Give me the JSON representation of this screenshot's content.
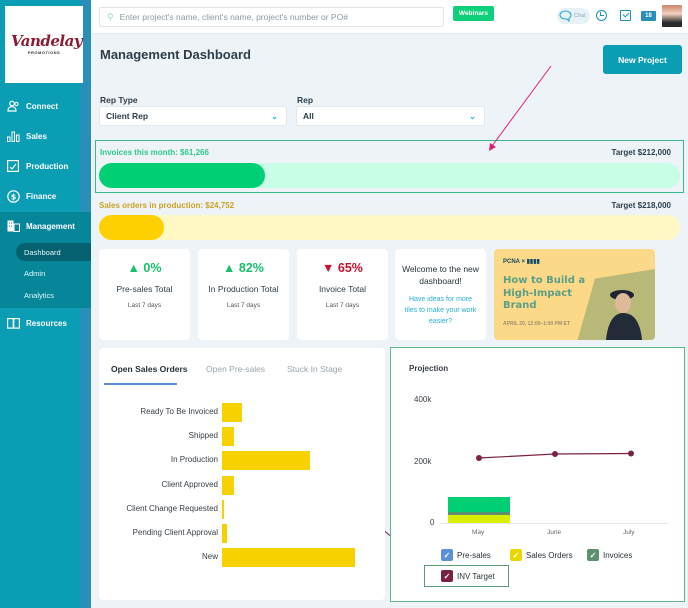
{
  "brand": {
    "logo_text": "Vandelay",
    "logo_sub": "PROMOTIONS"
  },
  "sidebar": {
    "items": [
      {
        "label": "Connect",
        "icon": "people-icon"
      },
      {
        "label": "Sales",
        "icon": "bar-chart-icon"
      },
      {
        "label": "Production",
        "icon": "clipboard-icon"
      },
      {
        "label": "Finance",
        "icon": "dollar-circle-icon"
      },
      {
        "label": "Management",
        "icon": "building-icon"
      },
      {
        "label": "Resources",
        "icon": "book-icon"
      }
    ],
    "management_sub": [
      {
        "label": "Dashboard",
        "active": true
      },
      {
        "label": "Admin"
      },
      {
        "label": "Analytics"
      }
    ]
  },
  "topbar": {
    "search_placeholder": "Enter project's name, client's name, project's number or PO#",
    "webinars_label": "Webinars",
    "chat_label": "Chat",
    "notification_count": "18"
  },
  "header": {
    "title": "Management Dashboard",
    "new_project_label": "New Project"
  },
  "filters": {
    "rep_type_label": "Rep Type",
    "rep_type_value": "Client Rep",
    "rep_label": "Rep",
    "rep_value": "All"
  },
  "progress": {
    "invoices": {
      "label": "Invoices this month: $61,266",
      "target": "Target $212,000",
      "value": 61266,
      "target_value": 212000,
      "color": "#00cf73",
      "track": "#c8fde6"
    },
    "sales_orders": {
      "label": "Sales orders in production: $24,752",
      "target": "Target $218,000",
      "value": 24752,
      "target_value": 218000,
      "color": "#ffd000",
      "track": "#fff7c4"
    }
  },
  "stat_cards": [
    {
      "arrow": "▲",
      "pct": "0%",
      "title": "Pre-sales Total",
      "period": "Last 7 days",
      "color": "#18c06b"
    },
    {
      "arrow": "▲",
      "pct": "82%",
      "title": "In Production Total",
      "period": "Last 7 days",
      "color": "#18c06b"
    },
    {
      "arrow": "▼",
      "pct": "65%",
      "title": "Invoice Total",
      "period": "Last 7 days",
      "color": "#c8102e"
    }
  ],
  "welcome": {
    "heading": "Welcome to the new dashboard!",
    "link": "Have ideas for more tiles to make your work easier?"
  },
  "ad": {
    "logos": "PCNA × ▮▮▮▮",
    "title": "How to Build a High-Impact Brand",
    "date": "APRIL 20, 12:00–1:00 PM ET"
  },
  "orders_panel": {
    "tabs": [
      "Open Sales Orders",
      "Open Pre-sales",
      "Stuck In Stage"
    ],
    "active_tab": 0
  },
  "projection": {
    "title": "Projection"
  },
  "chart_data": [
    {
      "type": "bar",
      "orientation": "horizontal",
      "title": "Open Sales Orders",
      "categories": [
        "Ready To Be Invoiced",
        "Shipped",
        "In Production",
        "Client Approved",
        "Client Change Requested",
        "Pending Client Approval",
        "New"
      ],
      "values": [
        20,
        12,
        88,
        12,
        2,
        5,
        133
      ],
      "color": "#f7d200",
      "units": "relative"
    },
    {
      "type": "bar",
      "title": "Projection",
      "categories": [
        "May",
        "June",
        "July"
      ],
      "ylim": [
        0,
        400000
      ],
      "yticks": [
        "0",
        "200k",
        "400k"
      ],
      "series": [
        {
          "name": "Pre-sales",
          "values": [
            0,
            0,
            0
          ],
          "color": "#5b8fd8",
          "stacked": true
        },
        {
          "name": "Sales Orders",
          "values": [
            24752,
            0,
            0
          ],
          "color": "#e3e800",
          "stacked": true
        },
        {
          "name": "Invoices",
          "values": [
            61266,
            0,
            0
          ],
          "color": "#00cf73",
          "stacked": true
        },
        {
          "name": "INV Target",
          "type": "line",
          "values": [
            212000,
            222000,
            224000
          ],
          "color": "#7a2246"
        }
      ],
      "legend_position": "bottom"
    }
  ]
}
